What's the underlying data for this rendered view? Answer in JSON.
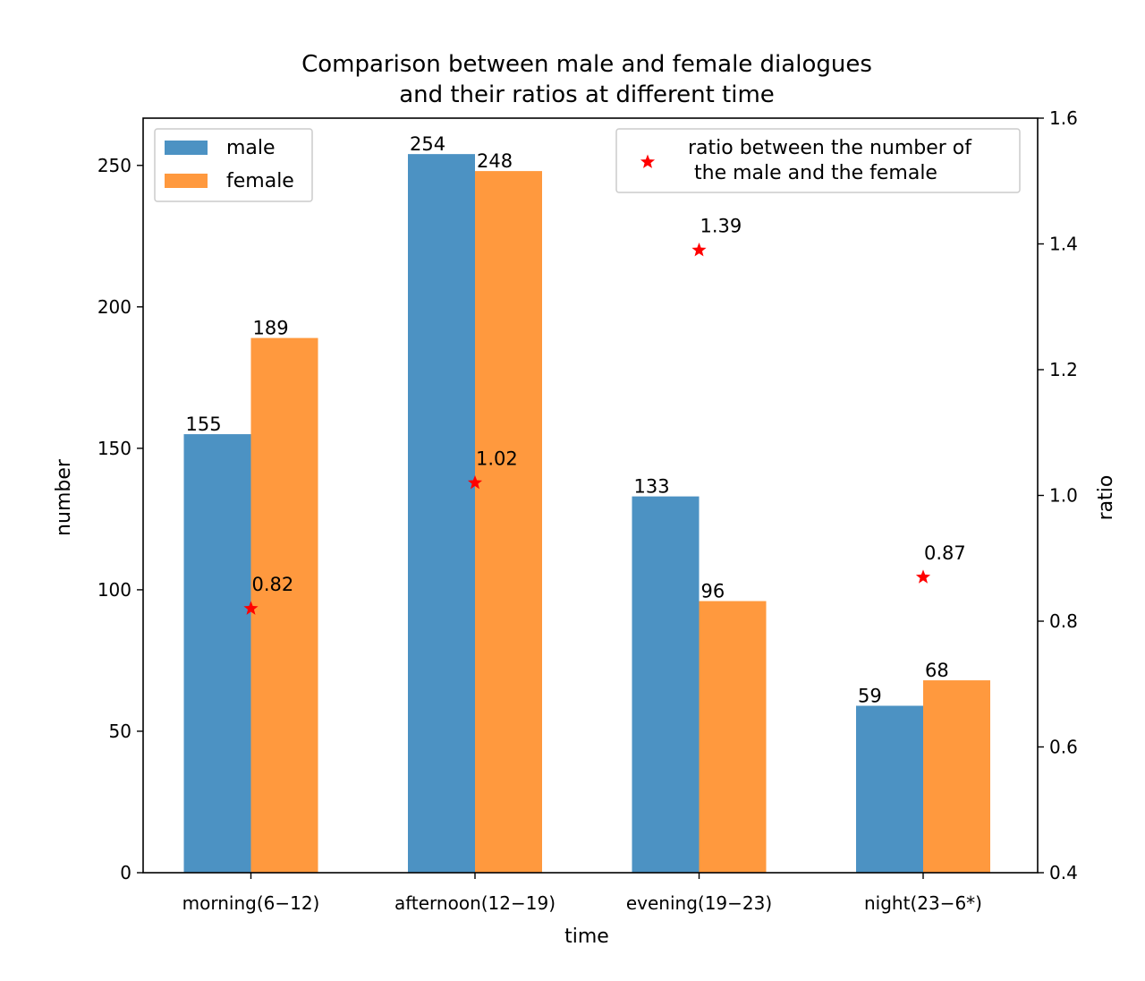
{
  "chart_data": {
    "type": "bar",
    "title_lines": [
      "Comparison between male and female dialogues",
      "and their ratios at different time"
    ],
    "xlabel": "time",
    "ylabel": "number",
    "ylabel_right": "ratio",
    "categories": [
      "morning(6−12)",
      "afternoon(12−19)",
      "evening(19−23)",
      "night(23−6*)"
    ],
    "series": [
      {
        "name": "male",
        "values": [
          155,
          254,
          133,
          59
        ],
        "color": "#4c92c3"
      },
      {
        "name": "female",
        "values": [
          189,
          248,
          96,
          68
        ],
        "color": "#ff993e"
      }
    ],
    "ratio_series": {
      "name": "ratio between the number of\n the male and the female",
      "legend_lines": [
        "ratio between the number of",
        " the male and the female"
      ],
      "values": [
        0.82,
        1.02,
        1.39,
        0.87
      ],
      "labels": [
        "0.82",
        "1.02",
        "1.39",
        "0.87"
      ],
      "color": "#ff0000",
      "marker": "star"
    },
    "ylim": [
      0,
      266.7
    ],
    "yticks": [
      0,
      50,
      100,
      150,
      200,
      250
    ],
    "ylim_right": [
      0.4,
      1.6
    ],
    "yticks_right": [
      "0.4",
      "0.6",
      "0.8",
      "1.0",
      "1.2",
      "1.4",
      "1.6"
    ],
    "legend_left_placement": "upper-left",
    "legend_right_placement": "upper-right",
    "grid": false
  }
}
